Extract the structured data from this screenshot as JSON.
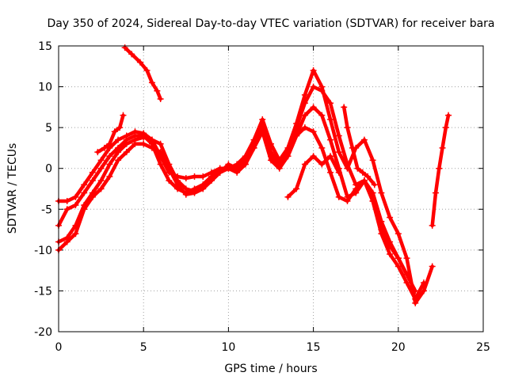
{
  "chart_data": {
    "type": "scatter",
    "title": "Day 350 of 2024, Sidereal Day-to-day VTEC variation (SDTVAR) for receiver bara",
    "xlabel": "GPS time / hours",
    "ylabel": "SDTVAR / TECUs",
    "xlim": [
      0,
      25
    ],
    "ylim": [
      -20,
      15
    ],
    "xticks": [
      0,
      5,
      10,
      15,
      20,
      25
    ],
    "yticks": [
      -20,
      -15,
      -10,
      -5,
      0,
      5,
      10,
      15
    ],
    "grid": true,
    "marker": "plus",
    "color": "#ff0000",
    "series": [
      {
        "x": [
          0.0,
          0.5,
          1.0,
          1.5,
          2.0,
          2.5,
          3.0,
          3.5,
          4.0,
          4.5,
          5.0,
          5.5,
          6.0,
          6.5,
          7.0,
          7.5,
          8.0,
          8.5,
          9.0,
          9.5,
          10.0,
          10.5,
          11.0,
          11.5,
          12.0,
          12.5,
          13.0,
          13.5,
          14.0,
          14.5,
          15.0,
          15.5,
          16.0,
          16.5,
          17.0,
          17.5,
          18.0,
          18.5,
          19.0,
          19.5,
          20.0,
          20.5,
          21.0,
          21.5,
          22.0
        ],
        "y": [
          -4.0,
          -4.0,
          -3.5,
          -2.0,
          -0.5,
          1.0,
          2.5,
          3.5,
          4.0,
          4.5,
          4.3,
          3.5,
          1.5,
          -0.5,
          -1.0,
          -1.2,
          -1.0,
          -1.0,
          -0.5,
          0.0,
          0.0,
          0.5,
          1.5,
          3.5,
          6.0,
          3.0,
          1.0,
          2.5,
          5.5,
          9.0,
          12.0,
          10.0,
          6.0,
          2.0,
          0.0,
          2.5,
          3.5,
          1.0,
          -3.0,
          -6.0,
          -8.0,
          -11.0,
          -16.5,
          -15.0,
          -12.0
        ]
      },
      {
        "x": [
          0.0,
          0.5,
          1.0,
          1.5,
          2.0,
          2.5,
          3.0,
          3.5,
          4.0,
          4.5,
          5.0,
          5.5,
          6.0,
          6.5,
          7.0,
          7.5,
          8.0,
          8.5,
          9.0,
          9.5,
          10.0,
          10.5,
          11.0,
          11.5,
          12.0,
          12.5,
          13.0,
          13.5,
          14.0,
          14.5,
          15.0,
          15.5,
          16.0,
          16.5,
          17.0,
          17.5,
          18.0,
          18.5,
          19.0,
          19.5,
          20.0,
          20.5,
          21.0
        ],
        "y": [
          -7.0,
          -5.0,
          -4.5,
          -3.0,
          -1.5,
          0.0,
          1.5,
          2.5,
          3.5,
          4.0,
          4.0,
          3.0,
          0.5,
          -1.5,
          -2.5,
          -3.0,
          -2.5,
          -2.0,
          -1.0,
          0.0,
          0.0,
          -0.5,
          0.5,
          2.5,
          5.5,
          2.0,
          0.5,
          2.0,
          5.0,
          8.0,
          10.0,
          9.5,
          8.0,
          4.0,
          0.5,
          -2.0,
          -1.5,
          -4.0,
          -7.5,
          -9.5,
          -11.0,
          -13.0,
          -15.0
        ]
      },
      {
        "x": [
          0.0,
          0.5,
          1.0,
          1.5,
          2.0,
          2.5,
          3.0,
          3.5,
          4.0,
          4.5,
          5.0,
          5.5,
          6.0,
          6.5,
          7.0,
          7.5,
          8.0,
          8.5,
          9.0,
          9.5,
          10.0,
          10.5,
          11.0,
          11.5,
          12.0,
          12.5,
          13.0,
          13.5,
          14.0,
          14.5,
          15.0,
          15.5,
          16.0,
          16.5,
          17.0,
          17.5,
          18.0,
          18.5,
          19.0,
          19.5,
          20.0,
          20.5
        ],
        "y": [
          -9.0,
          -8.5,
          -7.0,
          -4.5,
          -3.0,
          -1.5,
          0.5,
          2.0,
          3.0,
          3.5,
          3.8,
          3.5,
          3.0,
          0.5,
          -1.5,
          -2.5,
          -2.8,
          -2.0,
          -1.0,
          -0.5,
          0.0,
          0.0,
          0.5,
          3.0,
          5.0,
          1.5,
          0.5,
          1.5,
          4.0,
          6.5,
          7.5,
          6.5,
          3.5,
          0.0,
          -3.5,
          -3.0,
          -1.5,
          -3.0,
          -6.5,
          -9.0,
          -11.0,
          -13.0
        ]
      },
      {
        "x": [
          0.0,
          0.5,
          1.0,
          1.5,
          2.0,
          2.5,
          3.0,
          3.5,
          4.0,
          4.5,
          5.0,
          5.5,
          6.0,
          6.5,
          7.0,
          7.5,
          8.0,
          8.5,
          9.0,
          9.5,
          10.0,
          10.5,
          11.0,
          11.5,
          12.0,
          12.5,
          13.0,
          13.5,
          14.0,
          14.5,
          15.0,
          15.5,
          16.0,
          16.5,
          17.0,
          17.5,
          18.0,
          18.5,
          19.0,
          19.5,
          20.0,
          20.5,
          21.0,
          21.5
        ],
        "y": [
          -10.0,
          -9.0,
          -8.0,
          -5.0,
          -3.5,
          -2.5,
          -1.0,
          1.0,
          2.0,
          3.0,
          3.0,
          2.5,
          2.0,
          0.0,
          -2.0,
          -3.2,
          -3.0,
          -2.5,
          -1.5,
          -0.5,
          0.5,
          0.0,
          1.0,
          2.5,
          4.5,
          1.0,
          0.0,
          1.5,
          4.0,
          5.0,
          4.5,
          2.5,
          -0.5,
          -3.5,
          -4.0,
          -2.5,
          -1.5,
          -4.0,
          -8.0,
          -10.5,
          -12.0,
          -14.0,
          -16.0,
          -14.0
        ]
      },
      {
        "x": [
          3.9,
          4.3,
          4.8,
          5.2,
          5.5,
          5.8,
          6.0
        ],
        "y": [
          14.8,
          14.0,
          13.0,
          12.0,
          10.5,
          9.5,
          8.5
        ]
      },
      {
        "x": [
          13.5,
          14.0,
          14.5,
          15.0,
          15.5,
          16.0,
          16.5
        ],
        "y": [
          -3.5,
          -2.5,
          0.5,
          1.5,
          0.5,
          1.5,
          -0.5
        ]
      },
      {
        "x": [
          2.3,
          2.7,
          3.0,
          3.3,
          3.6,
          3.8
        ],
        "y": [
          2.0,
          2.5,
          3.0,
          4.5,
          5.0,
          6.5
        ]
      },
      {
        "x": [
          16.8,
          17.0,
          17.3,
          17.6,
          17.9,
          18.2,
          18.6
        ],
        "y": [
          7.5,
          5.0,
          2.5,
          0.0,
          -0.5,
          -1.0,
          -2.0
        ]
      },
      {
        "x": [
          22.0,
          22.2,
          22.4,
          22.6,
          22.8,
          22.95
        ],
        "y": [
          -7.0,
          -3.0,
          0.0,
          2.5,
          5.0,
          6.5
        ]
      }
    ]
  }
}
